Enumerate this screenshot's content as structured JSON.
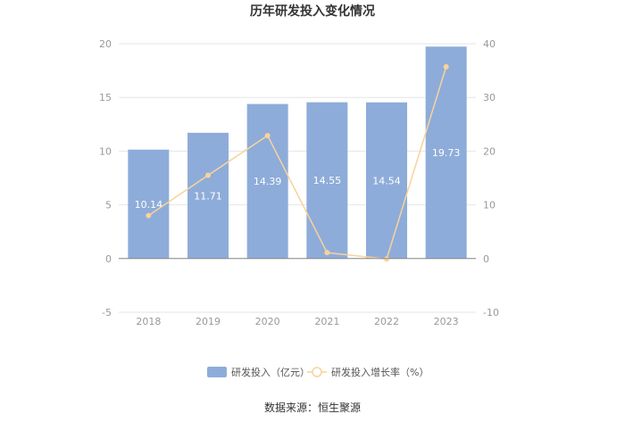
{
  "chart_data": {
    "type": "bar",
    "title": "历年研发投入变化情况",
    "categories": [
      "2018",
      "2019",
      "2020",
      "2021",
      "2022",
      "2023"
    ],
    "series": [
      {
        "name": "研发投入（亿元）",
        "type": "bar",
        "axis": "left",
        "color": "#8eacd9",
        "values": [
          10.14,
          11.71,
          14.39,
          14.55,
          14.54,
          19.73
        ]
      },
      {
        "name": "研发投入增长率（%）",
        "type": "line",
        "axis": "right",
        "color": "#f8d39a",
        "values": [
          8.0,
          15.5,
          22.9,
          1.1,
          -0.1,
          35.7
        ]
      }
    ],
    "y_left": {
      "min": -5,
      "max": 20,
      "ticks": [
        -5,
        0,
        5,
        10,
        15,
        20
      ]
    },
    "y_right": {
      "min": -10,
      "max": 40,
      "ticks": [
        -10,
        0,
        10,
        20,
        30,
        40
      ]
    },
    "legend_position": "bottom",
    "grid": true,
    "source": "数据来源：恒生聚源"
  }
}
